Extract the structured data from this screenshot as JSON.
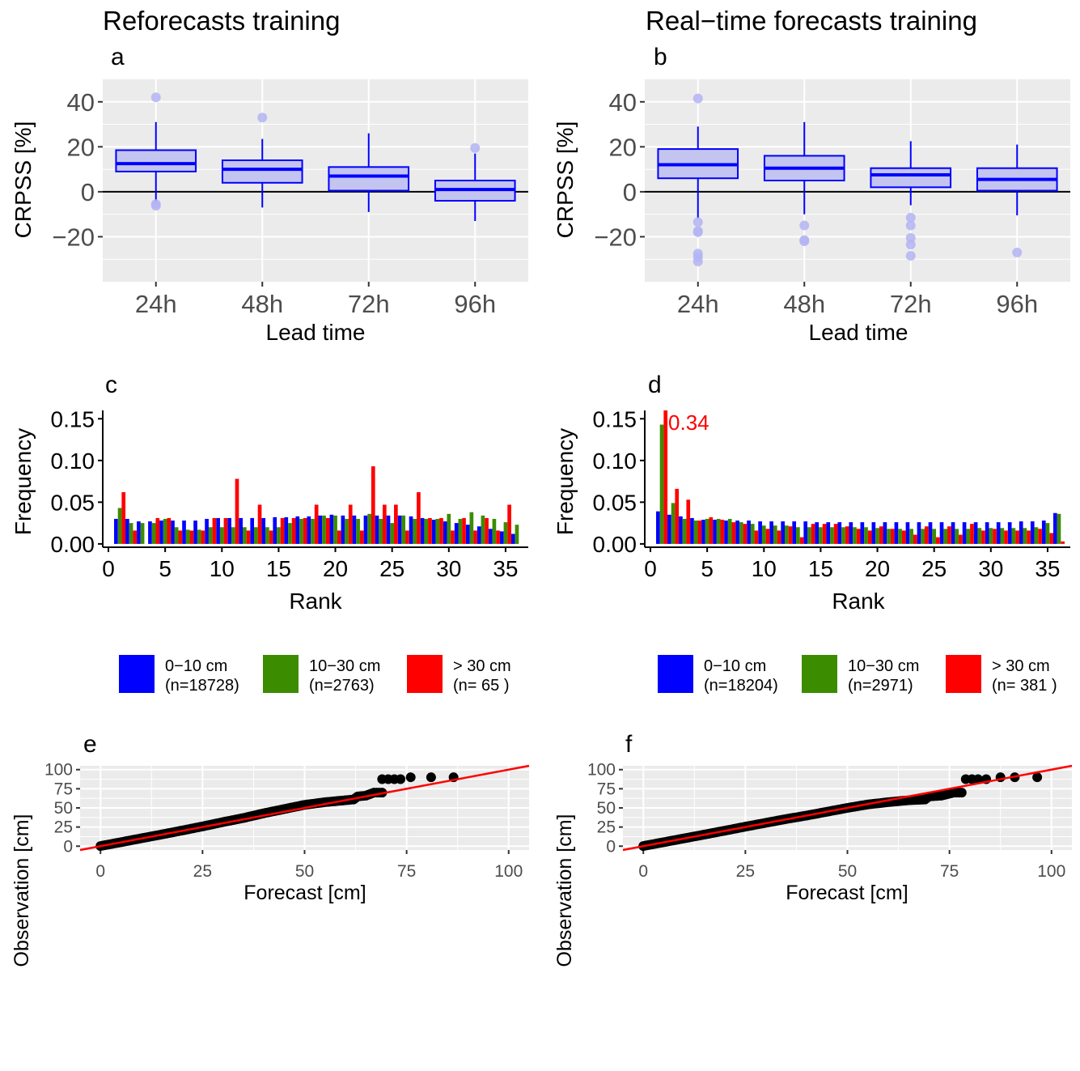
{
  "chart_data": [
    {
      "id": "a",
      "type": "box",
      "panel_letter": "a",
      "title": "Reforecasts training",
      "xlabel": "Lead time",
      "ylabel": "CRPSS [%]",
      "categories": [
        "24h",
        "48h",
        "72h",
        "96h"
      ],
      "ylim": [
        -40,
        50
      ],
      "yticks": [
        -20,
        0,
        20,
        40
      ],
      "ytick_labels": [
        "−20",
        "0",
        "20",
        "40"
      ],
      "zero_line": 0,
      "boxes": [
        {
          "lower_whisker": -5,
          "q1": 9,
          "median": 12.5,
          "q3": 18.5,
          "upper_whisker": 31,
          "outliers": [
            42,
            -5.5,
            -6.2
          ]
        },
        {
          "lower_whisker": -7,
          "q1": 4,
          "median": 10,
          "q3": 14,
          "upper_whisker": 23.5,
          "outliers": [
            33
          ]
        },
        {
          "lower_whisker": -9,
          "q1": 0.5,
          "median": 7,
          "q3": 11,
          "upper_whisker": 26,
          "outliers": []
        },
        {
          "lower_whisker": -13,
          "q1": -4,
          "median": 1,
          "q3": 5,
          "upper_whisker": 17,
          "outliers": [
            19.5
          ]
        }
      ],
      "colors": {
        "box_fill": "#c4c4f1",
        "box_line": "#0000ff",
        "outlier": "#b4b4f4"
      }
    },
    {
      "id": "b",
      "type": "box",
      "panel_letter": "b",
      "title": "Real−time forecasts training",
      "xlabel": "Lead time",
      "ylabel": "CRPSS [%]",
      "categories": [
        "24h",
        "48h",
        "72h",
        "96h"
      ],
      "ylim": [
        -40,
        50
      ],
      "yticks": [
        -20,
        0,
        20,
        40
      ],
      "ytick_labels": [
        "−20",
        "0",
        "20",
        "40"
      ],
      "zero_line": 0,
      "boxes": [
        {
          "lower_whisker": -12,
          "q1": 6,
          "median": 12,
          "q3": 19,
          "upper_whisker": 29,
          "outliers": [
            41.5,
            -13.5,
            -17.5,
            -18,
            -27.5,
            -29,
            -31
          ]
        },
        {
          "lower_whisker": -10,
          "q1": 5,
          "median": 10.5,
          "q3": 16,
          "upper_whisker": 31,
          "outliers": [
            -15,
            -21.5,
            -22
          ]
        },
        {
          "lower_whisker": -6,
          "q1": 2,
          "median": 7.5,
          "q3": 10.5,
          "upper_whisker": 22.5,
          "outliers": [
            -11.5,
            -15,
            -20.5,
            -23.5,
            -28.5
          ]
        },
        {
          "lower_whisker": -10.5,
          "q1": 0.5,
          "median": 5.5,
          "q3": 10.5,
          "upper_whisker": 21,
          "outliers": [
            -27
          ]
        }
      ],
      "colors": {
        "box_fill": "#c4c4f1",
        "box_line": "#0000ff",
        "outlier": "#b4b4f4"
      }
    },
    {
      "id": "c",
      "type": "bar",
      "panel_letter": "c",
      "xlabel": "Rank",
      "ylabel": "Frequency",
      "xlim": [
        -0.5,
        37
      ],
      "ylim": [
        -0.004,
        0.16
      ],
      "xticks": [
        0,
        5,
        10,
        15,
        20,
        25,
        30,
        35
      ],
      "yticks": [
        0.0,
        0.05,
        0.1,
        0.15
      ],
      "ytick_labels": [
        "0.00",
        "0.05",
        "0.10",
        "0.15"
      ],
      "x": [
        1,
        2,
        3,
        4,
        5,
        6,
        7,
        8,
        9,
        10,
        11,
        12,
        13,
        14,
        15,
        16,
        17,
        18,
        19,
        20,
        21,
        22,
        23,
        24,
        25,
        26,
        27,
        28,
        29,
        30,
        31,
        32,
        33,
        34,
        35,
        36
      ],
      "series": [
        {
          "name": "0−10 cm\n(n=18728)",
          "color": "#0000ff",
          "values": [
            0.03,
            0.03,
            0.027,
            0.027,
            0.028,
            0.028,
            0.028,
            0.028,
            0.03,
            0.031,
            0.031,
            0.031,
            0.031,
            0.031,
            0.032,
            0.032,
            0.033,
            0.033,
            0.034,
            0.035,
            0.034,
            0.034,
            0.034,
            0.034,
            0.034,
            0.034,
            0.033,
            0.031,
            0.029,
            0.027,
            0.025,
            0.023,
            0.021,
            0.018,
            0.015,
            0.012
          ]
        },
        {
          "name": "10−30 cm\n(n=2763)",
          "color": "#3c8c00",
          "values": [
            0.043,
            0.025,
            0.025,
            0.025,
            0.03,
            0.02,
            0.017,
            0.017,
            0.02,
            0.02,
            0.02,
            0.02,
            0.02,
            0.02,
            0.02,
            0.025,
            0.03,
            0.03,
            0.034,
            0.034,
            0.03,
            0.03,
            0.036,
            0.03,
            0.025,
            0.034,
            0.03,
            0.03,
            0.03,
            0.036,
            0.03,
            0.038,
            0.034,
            0.03,
            0.026,
            0.023
          ]
        },
        {
          "name": "> 30 cm\n(n= 65 )",
          "color": "#ff0000",
          "values": [
            0.062,
            0.016,
            0.0,
            0.031,
            0.031,
            0.016,
            0.016,
            0.016,
            0.031,
            0.031,
            0.078,
            0.016,
            0.047,
            0.016,
            0.031,
            0.031,
            0.031,
            0.047,
            0.031,
            0.016,
            0.047,
            0.016,
            0.093,
            0.047,
            0.047,
            0.016,
            0.062,
            0.031,
            0.031,
            0.016,
            0.031,
            0.016,
            0.031,
            0.016,
            0.047,
            0.0
          ]
        }
      ]
    },
    {
      "id": "d",
      "type": "bar",
      "panel_letter": "d",
      "xlabel": "Rank",
      "ylabel": "Frequency",
      "annotation": "0.34",
      "xlim": [
        -0.5,
        37
      ],
      "ylim": [
        -0.004,
        0.16
      ],
      "xticks": [
        0,
        5,
        10,
        15,
        20,
        25,
        30,
        35
      ],
      "yticks": [
        0.0,
        0.05,
        0.1,
        0.15
      ],
      "ytick_labels": [
        "0.00",
        "0.05",
        "0.10",
        "0.15"
      ],
      "x": [
        1,
        2,
        3,
        4,
        5,
        6,
        7,
        8,
        9,
        10,
        11,
        12,
        13,
        14,
        15,
        16,
        17,
        18,
        19,
        20,
        21,
        22,
        23,
        24,
        25,
        26,
        27,
        28,
        29,
        30,
        31,
        32,
        33,
        34,
        35,
        36
      ],
      "series": [
        {
          "name": "0−10 cm\n(n=18204)",
          "color": "#0000ff",
          "values": [
            0.039,
            0.035,
            0.033,
            0.031,
            0.029,
            0.029,
            0.028,
            0.028,
            0.028,
            0.027,
            0.027,
            0.027,
            0.027,
            0.027,
            0.026,
            0.026,
            0.026,
            0.026,
            0.026,
            0.026,
            0.026,
            0.026,
            0.026,
            0.026,
            0.026,
            0.026,
            0.026,
            0.026,
            0.026,
            0.026,
            0.026,
            0.026,
            0.027,
            0.027,
            0.028,
            0.037
          ]
        },
        {
          "name": "10−30 cm\n(n=2971)",
          "color": "#3c8c00",
          "values": [
            0.143,
            0.049,
            0.03,
            0.028,
            0.03,
            0.03,
            0.03,
            0.026,
            0.024,
            0.022,
            0.022,
            0.022,
            0.02,
            0.02,
            0.02,
            0.02,
            0.02,
            0.02,
            0.02,
            0.019,
            0.018,
            0.018,
            0.018,
            0.018,
            0.018,
            0.018,
            0.018,
            0.018,
            0.019,
            0.019,
            0.019,
            0.019,
            0.019,
            0.02,
            0.025,
            0.036
          ]
        },
        {
          "name": "> 30 cm\n(n= 381 )",
          "color": "#ff0000",
          "values": [
            0.16,
            0.066,
            0.053,
            0.028,
            0.032,
            0.029,
            0.026,
            0.024,
            0.016,
            0.018,
            0.016,
            0.021,
            0.008,
            0.024,
            0.024,
            0.024,
            0.021,
            0.018,
            0.016,
            0.021,
            0.018,
            0.016,
            0.011,
            0.021,
            0.008,
            0.021,
            0.011,
            0.024,
            0.016,
            0.018,
            0.016,
            0.016,
            0.016,
            0.018,
            0.013,
            0.003
          ]
        }
      ]
    },
    {
      "id": "e",
      "type": "scatter",
      "panel_letter": "e",
      "xlabel": "Forecast [cm]",
      "ylabel": "Observation [cm]",
      "xlim": [
        -5,
        105
      ],
      "ylim": [
        -5,
        105
      ],
      "xticks": [
        0,
        25,
        50,
        75,
        100
      ],
      "yticks": [
        0,
        25,
        50,
        75,
        100
      ],
      "reference_line": "y = x",
      "curve_points": [
        [
          0,
          0.2
        ],
        [
          5,
          5.2
        ],
        [
          10,
          10.3
        ],
        [
          15,
          15.3
        ],
        [
          20,
          20.5
        ],
        [
          25,
          25.8
        ],
        [
          30,
          31.5
        ],
        [
          35,
          36.8
        ],
        [
          40,
          43
        ],
        [
          45,
          48.5
        ],
        [
          50,
          54
        ],
        [
          55,
          57.5
        ],
        [
          60,
          60
        ],
        [
          62,
          61
        ],
        [
          63,
          65
        ],
        [
          65,
          66
        ],
        [
          67,
          70
        ],
        [
          69,
          70
        ]
      ],
      "extreme_points": [
        [
          69,
          87.5
        ],
        [
          70.5,
          87.5
        ],
        [
          72,
          87.5
        ],
        [
          73.5,
          87.5
        ],
        [
          76,
          90
        ],
        [
          81,
          90
        ],
        [
          86.5,
          90
        ]
      ],
      "colors": {
        "points": "#000000",
        "line": "#ff0000"
      }
    },
    {
      "id": "f",
      "type": "scatter",
      "panel_letter": "f",
      "xlabel": "Forecast [cm]",
      "ylabel": "Observation [cm]",
      "xlim": [
        -5,
        105
      ],
      "ylim": [
        -5,
        105
      ],
      "xticks": [
        0,
        25,
        50,
        75,
        100
      ],
      "yticks": [
        0,
        25,
        50,
        75,
        100
      ],
      "reference_line": "y = x",
      "curve_points": [
        [
          0,
          0.2
        ],
        [
          5,
          5.2
        ],
        [
          10,
          10.2
        ],
        [
          15,
          15.2
        ],
        [
          20,
          20.3
        ],
        [
          25,
          25.5
        ],
        [
          30,
          30.5
        ],
        [
          35,
          35.5
        ],
        [
          40,
          40
        ],
        [
          45,
          45
        ],
        [
          50,
          50
        ],
        [
          55,
          54.5
        ],
        [
          60,
          57.5
        ],
        [
          65,
          60
        ],
        [
          69,
          61
        ],
        [
          70,
          65
        ],
        [
          73,
          66
        ],
        [
          76,
          70
        ],
        [
          78,
          70
        ]
      ],
      "extreme_points": [
        [
          79,
          87.5
        ],
        [
          80.5,
          87.5
        ],
        [
          82,
          87.5
        ],
        [
          84,
          87.5
        ],
        [
          87.5,
          90
        ],
        [
          91,
          90
        ],
        [
          96.5,
          90
        ]
      ],
      "colors": {
        "points": "#000000",
        "line": "#ff0000"
      }
    }
  ]
}
